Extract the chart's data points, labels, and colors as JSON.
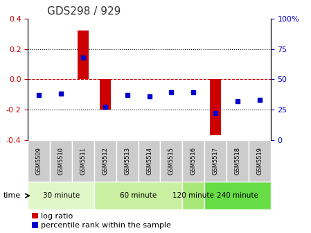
{
  "title": "GDS298 / 929",
  "samples": [
    "GSM5509",
    "GSM5510",
    "GSM5511",
    "GSM5512",
    "GSM5513",
    "GSM5514",
    "GSM5515",
    "GSM5516",
    "GSM5517",
    "GSM5518",
    "GSM5519"
  ],
  "log_ratio": [
    0.0,
    0.0,
    0.32,
    -0.2,
    0.0,
    0.0,
    0.0,
    0.0,
    -0.37,
    0.0,
    0.0
  ],
  "percentile_rank": [
    37,
    38,
    68,
    27,
    37,
    36,
    39,
    39,
    22,
    32,
    33
  ],
  "time_groups": [
    {
      "label": "30 minute",
      "start": 0,
      "end": 2,
      "color": "#e0f8c8"
    },
    {
      "label": "60 minute",
      "start": 3,
      "end": 6,
      "color": "#c8f0a0"
    },
    {
      "label": "120 minute",
      "start": 7,
      "end": 7,
      "color": "#a8e878"
    },
    {
      "label": "240 minute",
      "start": 8,
      "end": 10,
      "color": "#66dd44"
    }
  ],
  "ylim_left": [
    -0.4,
    0.4
  ],
  "ylim_right": [
    0,
    100
  ],
  "yticks_left": [
    -0.4,
    -0.2,
    0.0,
    0.2,
    0.4
  ],
  "yticks_right": [
    0,
    25,
    50,
    75,
    100
  ],
  "bar_color": "#cc0000",
  "dot_color": "#0000cc",
  "left_tick_color": "#cc0000",
  "right_tick_color": "#0000cc",
  "legend_bar_label": "log ratio",
  "legend_dot_label": "percentile rank within the sample",
  "time_label": "time",
  "background_xtick": "#cccccc",
  "zero_line_color": "#cc0000",
  "grid_line_color": "#000000"
}
